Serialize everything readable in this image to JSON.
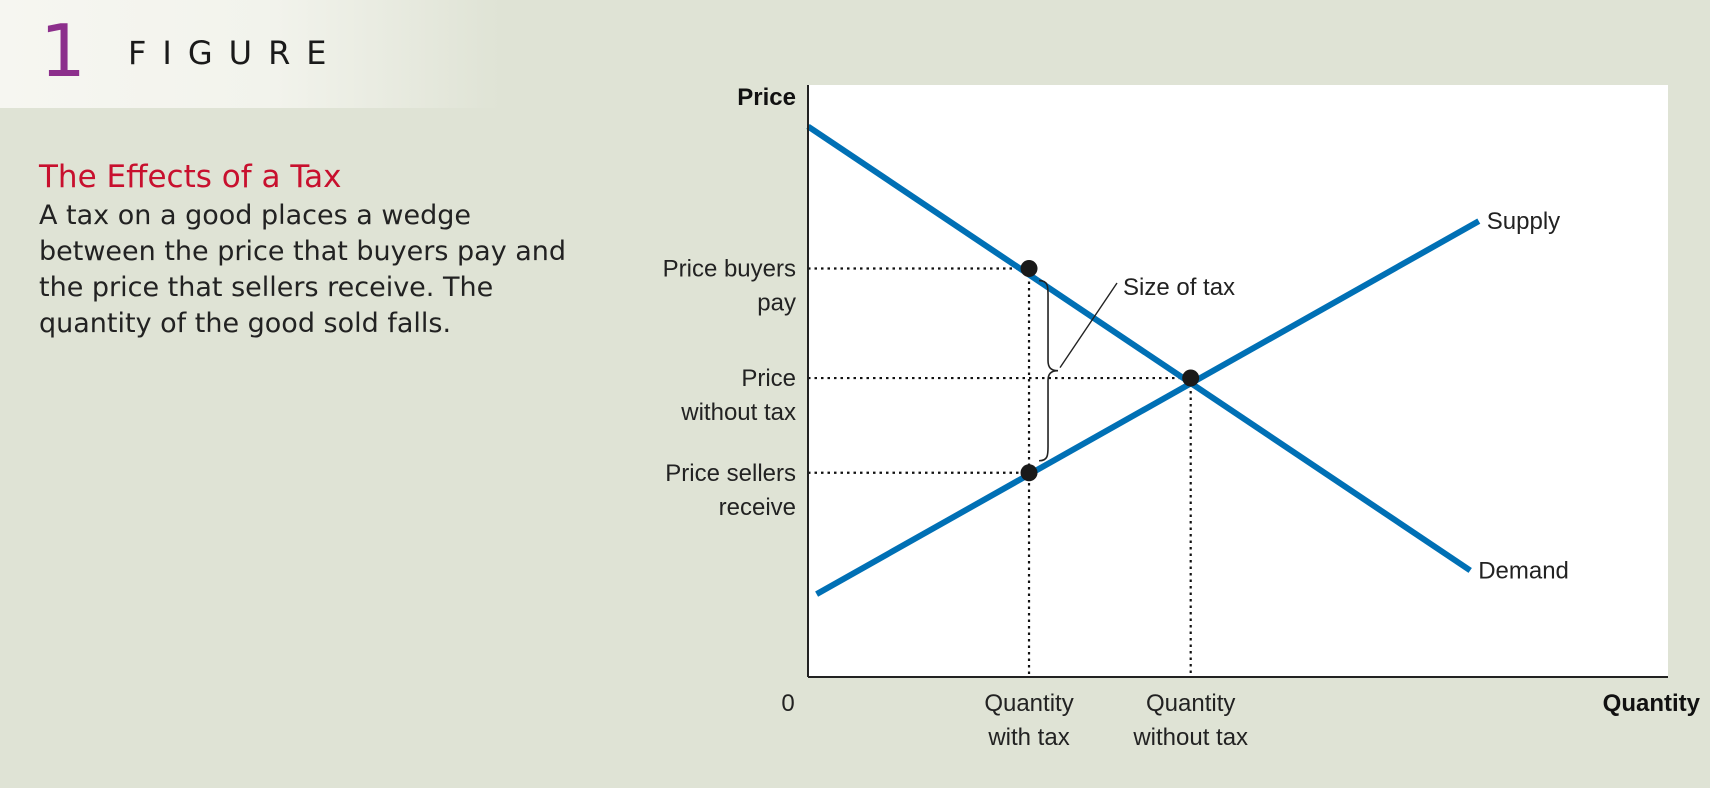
{
  "figure": {
    "number": "1",
    "label": "FIGURE"
  },
  "caption": {
    "title": "The Effects of a Tax",
    "body": "A tax on a good places a wedge between the price that buyers pay and the price that sellers receive. The quantity of the good sold falls."
  },
  "colors": {
    "curve": "#0070b5",
    "accent_title": "#c8102e",
    "figure_number": "#8c2f8c",
    "background": "#dfe3d5",
    "plot_bg": "#ffffff"
  },
  "chart_data": {
    "type": "line",
    "xlabel": "Quantity",
    "ylabel": "Price",
    "origin_label": "0",
    "xlim": [
      0,
      100
    ],
    "ylim": [
      0,
      100
    ],
    "grid": false,
    "series": [
      {
        "name": "Supply",
        "points": [
          [
            1,
            14
          ],
          [
            78,
            77
          ]
        ]
      },
      {
        "name": "Demand",
        "points": [
          [
            0,
            93
          ],
          [
            77,
            18
          ]
        ]
      }
    ],
    "equilibrium_points": [
      {
        "id": "price-buyers-pay-point",
        "x": 25.7,
        "y": 69
      },
      {
        "id": "equilibrium-point",
        "x": 44.5,
        "y": 50.5
      },
      {
        "id": "price-sellers-receive-point",
        "x": 25.7,
        "y": 34.5
      }
    ],
    "y_ticks": [
      {
        "value": 69,
        "lines": [
          "Price buyers",
          "pay"
        ]
      },
      {
        "value": 50.5,
        "lines": [
          "Price",
          "without tax"
        ]
      },
      {
        "value": 34.5,
        "lines": [
          "Price sellers",
          "receive"
        ]
      }
    ],
    "x_ticks": [
      {
        "value": 25.7,
        "lines": [
          "Quantity",
          "with tax"
        ]
      },
      {
        "value": 44.5,
        "lines": [
          "Quantity",
          "without tax"
        ]
      }
    ],
    "annotations": [
      {
        "text": "Size of tax",
        "from_y": 69,
        "to_y": 34.5,
        "at_x": 25.7
      }
    ]
  }
}
